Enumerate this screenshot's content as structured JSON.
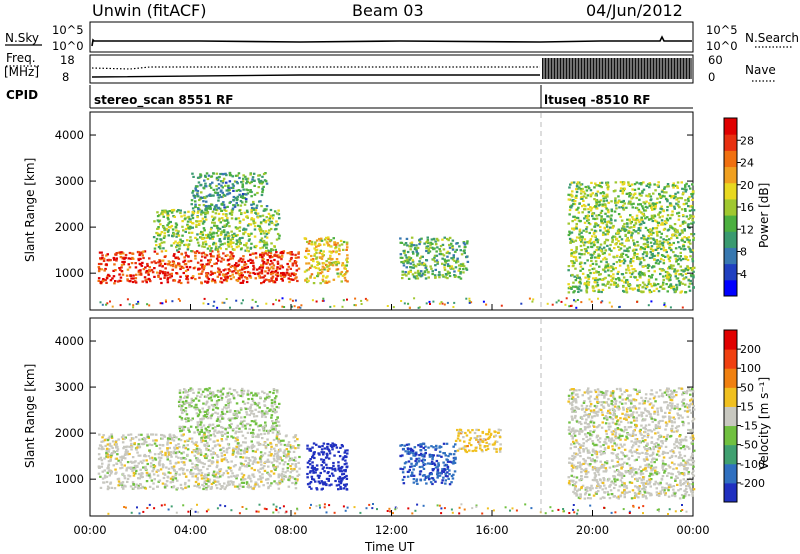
{
  "header": {
    "station": "Unwin (fitACF)",
    "beam": "Beam 03",
    "date": "04/Jun/2012"
  },
  "aux": {
    "nsky_label": "N.Sky",
    "nsky_ticks": [
      "10^5",
      "10^0"
    ],
    "nsearch_label": "N.Search",
    "nsearch_ticks": [
      "10^5",
      "10^0"
    ],
    "freq_label_1": "Freq.",
    "freq_label_2": "[MHz]",
    "freq_ticks": [
      "18",
      "8"
    ],
    "nave_label": "Nave",
    "nave_ticks": [
      "60",
      "0"
    ],
    "cpid_label": "CPID",
    "cpid_1": "stereo_scan 8551 RF",
    "cpid_2": "ltuseq -8510 RF"
  },
  "power_panel": {
    "ylabel": "Slant Range [km]",
    "yticks": [
      "4000",
      "3000",
      "2000",
      "1000"
    ],
    "cbar_label": "Power [dB]",
    "cbar_ticks": [
      "28",
      "24",
      "20",
      "16",
      "12",
      "8",
      "4"
    ],
    "cbar_colors": [
      "#0000ff",
      "#2040c0",
      "#3878b0",
      "#3a9a70",
      "#4cb040",
      "#a0c830",
      "#e8d820",
      "#f0a020",
      "#f07010",
      "#e83010",
      "#e00000"
    ]
  },
  "velocity_panel": {
    "ylabel": "Slant Range [km]",
    "yticks": [
      "4000",
      "3000",
      "2000",
      "1000"
    ],
    "cbar_label": "Velocity [m s⁻¹]",
    "cbar_ticks": [
      "200",
      "100",
      "50",
      "15",
      "-15",
      "-50",
      "-100",
      "-200"
    ],
    "cbar_colors": [
      "#2030c0",
      "#3070c0",
      "#40a070",
      "#70c040",
      "#c8c8c0",
      "#f0c020",
      "#f08010",
      "#f04010",
      "#e00000"
    ]
  },
  "time_axis": {
    "xlabel": "Time UT",
    "xticks": [
      "00:00",
      "04:00",
      "08:00",
      "12:00",
      "16:00",
      "20:00",
      "00:00"
    ]
  },
  "chart_data": {
    "type": "heatmap",
    "title": "Unwin (fitACF) Beam 03 04/Jun/2012",
    "xlabel": "Time UT",
    "ylabel": "Slant Range [km]",
    "xlim": [
      0,
      24
    ],
    "ylim": [
      200,
      4500
    ],
    "mode_change_hour": 18.0,
    "panels": [
      {
        "name": "Power",
        "unit": "dB",
        "range": [
          0,
          30
        ],
        "regions": [
          {
            "t0": 0.3,
            "t1": 8.3,
            "r0": 800,
            "r1": 1500,
            "value": 26
          },
          {
            "t0": 2.5,
            "t1": 7.5,
            "r0": 1500,
            "r1": 2400,
            "value": 14
          },
          {
            "t0": 4.0,
            "t1": 7.0,
            "r0": 2400,
            "r1": 3200,
            "value": 10
          },
          {
            "t0": 8.5,
            "t1": 10.2,
            "r0": 800,
            "r1": 1800,
            "value": 18
          },
          {
            "t0": 12.3,
            "t1": 15.0,
            "r0": 900,
            "r1": 1800,
            "value": 12
          },
          {
            "t0": 19.0,
            "t1": 24.0,
            "r0": 600,
            "r1": 3000,
            "value": 14
          }
        ]
      },
      {
        "name": "Velocity",
        "unit": "m s-1",
        "range": [
          -200,
          200
        ],
        "regions": [
          {
            "t0": 0.3,
            "t1": 8.3,
            "r0": 800,
            "r1": 2000,
            "value": 0
          },
          {
            "t0": 3.5,
            "t1": 7.5,
            "r0": 2000,
            "r1": 3000,
            "value": -20
          },
          {
            "t0": 8.6,
            "t1": 10.2,
            "r0": 800,
            "r1": 1800,
            "value": -200
          },
          {
            "t0": 12.3,
            "t1": 14.5,
            "r0": 900,
            "r1": 1800,
            "value": -150
          },
          {
            "t0": 14.5,
            "t1": 16.3,
            "r0": 1600,
            "r1": 2100,
            "value": 40
          },
          {
            "t0": 19.0,
            "t1": 24.0,
            "r0": 600,
            "r1": 3000,
            "value": 0
          }
        ]
      }
    ]
  }
}
